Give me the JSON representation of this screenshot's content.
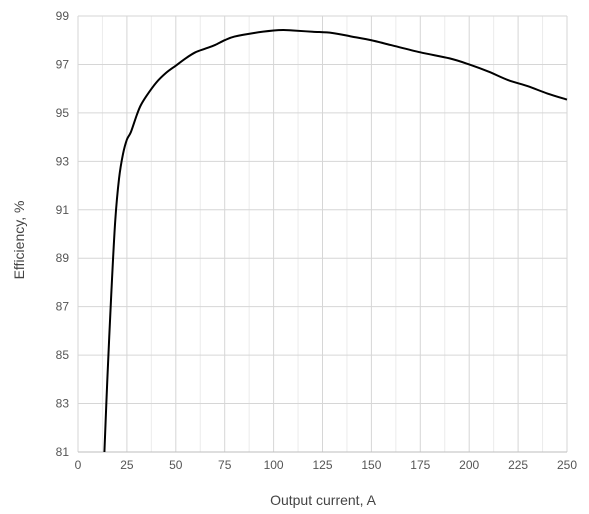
{
  "chart_data": {
    "type": "line",
    "title": "",
    "xlabel": "Output current, A",
    "ylabel": "Efficiency, %",
    "xlim": [
      0,
      250
    ],
    "ylim": [
      81,
      99
    ],
    "x_ticks": [
      0,
      25,
      50,
      75,
      100,
      125,
      150,
      175,
      200,
      225,
      250
    ],
    "y_ticks": [
      81,
      83,
      85,
      87,
      89,
      91,
      93,
      95,
      97,
      99
    ],
    "x_minor_gridlines": [
      12.5,
      37.5,
      62.5,
      87.5,
      112.5,
      137.5,
      162.5,
      187.5,
      212.5,
      237.5
    ],
    "grid": true,
    "legend": "none",
    "series": [
      {
        "color": "#000000",
        "x": [
          13.5,
          15,
          17,
          19,
          21,
          23,
          25,
          27,
          30,
          32,
          35,
          40,
          45,
          50,
          55,
          60,
          65,
          70,
          75,
          80,
          90,
          100,
          105,
          110,
          120,
          130,
          140,
          150,
          160,
          175,
          190,
          200,
          210,
          220,
          230,
          240,
          250
        ],
        "y": [
          81.0,
          84.0,
          87.5,
          90.5,
          92.3,
          93.3,
          93.9,
          94.2,
          94.9,
          95.3,
          95.7,
          96.25,
          96.65,
          96.95,
          97.25,
          97.5,
          97.65,
          97.8,
          98.0,
          98.15,
          98.3,
          98.4,
          98.42,
          98.4,
          98.35,
          98.3,
          98.15,
          98.0,
          97.8,
          97.5,
          97.25,
          97.0,
          96.7,
          96.35,
          96.1,
          95.8,
          95.55
        ]
      }
    ]
  }
}
